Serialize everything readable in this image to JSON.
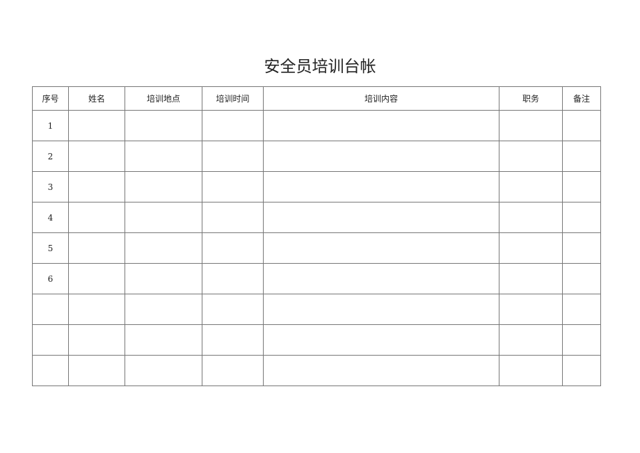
{
  "title": "安全员培训台帐",
  "columns": [
    "序号",
    "姓名",
    "培训地点",
    "培训时间",
    "培训内容",
    "职务",
    "备注"
  ],
  "rows": [
    "1",
    "2",
    "3",
    "4",
    "5",
    "6",
    "",
    "",
    ""
  ]
}
